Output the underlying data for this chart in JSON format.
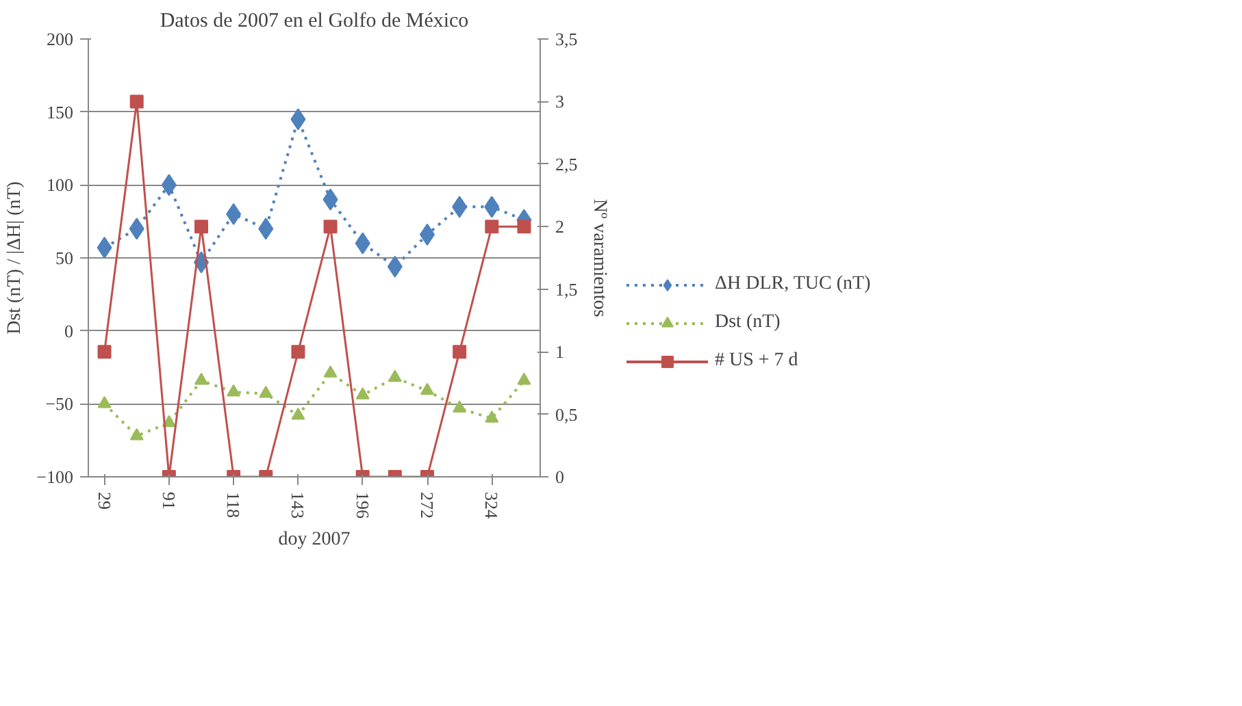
{
  "chart_data": {
    "type": "line",
    "title": "Datos de 2007 en el Golfo de México",
    "xlabel": "doy 2007",
    "ylabel": "Dst (nT) / |ΔH| (nT)",
    "y2label": "Nº varamientos",
    "categories": [
      "29",
      null,
      "91",
      null,
      "118",
      null,
      "143",
      null,
      "196",
      null,
      "272",
      null,
      "324",
      null
    ],
    "series": [
      {
        "name": "ΔH DLR, TUC (nT)",
        "color": "#4f81bd",
        "marker": "diamond",
        "line_style": "dotted",
        "values": [
          57,
          70,
          100,
          47,
          80,
          70,
          145,
          90,
          60,
          44,
          66,
          85,
          85,
          76
        ]
      },
      {
        "name": "Dst (nT)",
        "color": "#9bbb59",
        "marker": "triangle",
        "line_style": "dotted",
        "values": [
          -50,
          -72,
          -63,
          -34,
          -42,
          -43,
          -58,
          -29,
          -44,
          -32,
          -41,
          -53,
          -60,
          -34
        ]
      },
      {
        "name": "# US + 7 d",
        "color": "#c0504d",
        "marker": "square",
        "line_style": "solid",
        "axis": "y2",
        "values": [
          1,
          3,
          0,
          2,
          0,
          0,
          1,
          2,
          0,
          0,
          0,
          1,
          2,
          2
        ]
      }
    ],
    "ylim": [
      -100,
      200
    ],
    "yticks": [
      -100,
      -50,
      0,
      50,
      100,
      150,
      200
    ],
    "y2lim": [
      0,
      3.5
    ],
    "y2ticks": [
      0,
      {
        "value": 0.5,
        "label": "0,5"
      },
      1,
      {
        "value": 1.5,
        "label": "1,5"
      },
      2,
      {
        "value": 2.5,
        "label": "2,5"
      },
      3,
      {
        "value": 3.5,
        "label": "3,5"
      }
    ],
    "grid": "y",
    "legend": "right"
  }
}
